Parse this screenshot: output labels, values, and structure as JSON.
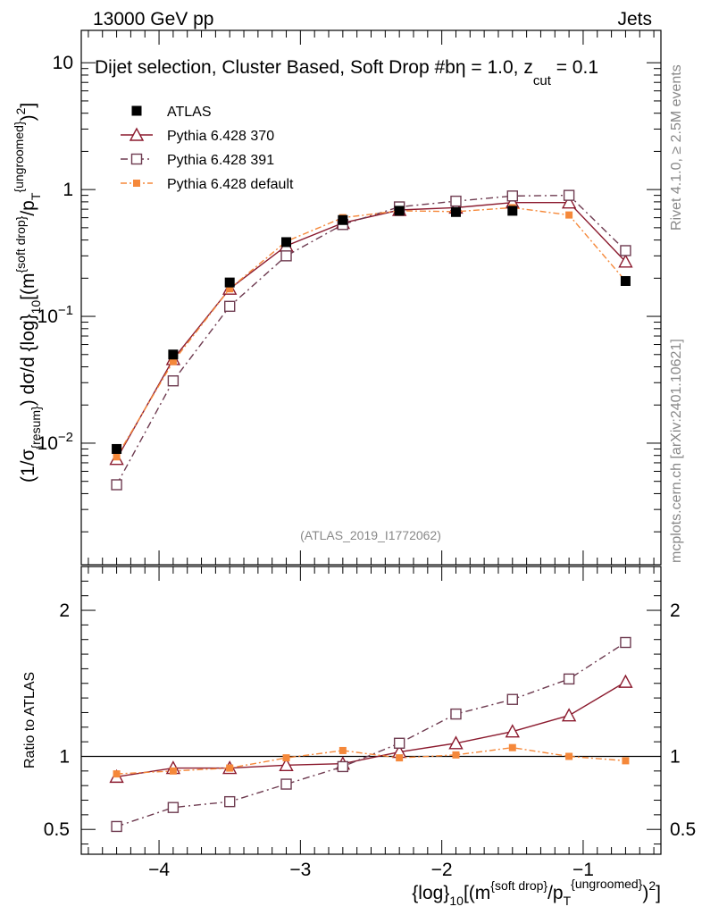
{
  "header": {
    "left": "13000 GeV pp",
    "right": "Jets"
  },
  "side_labels": {
    "rivet": "Rivet 4.1.0, ≥ 2.5M events",
    "mcplots": "mcplots.cern.ch [arXiv:2401.10621]"
  },
  "colors": {
    "atlas": "#000000",
    "py370": "#8b1a2e",
    "py391": "#6e3b50",
    "pydef": "#f5883a"
  },
  "chart_data": [
    {
      "type": "line",
      "panel": "main",
      "title": "Dijet selection, Cluster Based, Soft Drop #b",
      "title_extra": "η = 1.0, z",
      "title_sub": "cut",
      "title_tail": " = 0.1",
      "watermark": "(ATLAS_2019_I1772062)",
      "ylabel": "(1/σ_{resum}) dσ/d {log}_10[(m^{soft drop}/p_T^{ungroomed})^2]",
      "yscale": "log",
      "ylim": [
        0.0011,
        18
      ],
      "xlim": [
        -4.55,
        -0.45
      ],
      "yticks": [
        {
          "value": 0.01,
          "label": "10",
          "exp": "−2"
        },
        {
          "value": 0.1,
          "label": "10",
          "exp": "−1"
        },
        {
          "value": 1,
          "label": "1",
          "exp": ""
        },
        {
          "value": 10,
          "label": "10",
          "exp": ""
        }
      ],
      "x": [
        -4.3,
        -3.9,
        -3.5,
        -3.1,
        -2.7,
        -2.3,
        -1.9,
        -1.5,
        -1.1,
        -0.7
      ],
      "legend": [
        "ATLAS",
        "Pythia 6.428 370",
        "Pythia 6.428 391",
        "Pythia 6.428 default"
      ],
      "legend_position": "top-left",
      "series": [
        {
          "name": "ATLAS",
          "values": [
            0.009,
            0.05,
            0.185,
            0.385,
            0.575,
            0.68,
            0.665,
            0.68,
            null,
            0.19
          ]
        },
        {
          "name": "Pythia 6.428 370",
          "values": [
            0.0075,
            0.046,
            0.165,
            0.36,
            0.545,
            0.69,
            0.72,
            0.79,
            0.79,
            0.27
          ]
        },
        {
          "name": "Pythia 6.428 391",
          "values": [
            0.0047,
            0.031,
            0.12,
            0.3,
            0.53,
            0.73,
            0.81,
            0.89,
            0.9,
            0.33
          ]
        },
        {
          "name": "Pythia 6.428 default",
          "values": [
            0.0078,
            0.044,
            0.165,
            0.39,
            0.6,
            0.68,
            0.67,
            0.72,
            0.63,
            0.19
          ]
        }
      ]
    },
    {
      "type": "line",
      "panel": "ratio",
      "ylabel": "Ratio to ATLAS",
      "ylim": [
        0.33,
        2.3
      ],
      "xlim": [
        -4.55,
        -0.45
      ],
      "yticks": [
        0.5,
        1,
        2
      ],
      "ytick_labels": [
        "0.5",
        "1",
        "2"
      ],
      "xticks": [
        -4,
        -3,
        -2,
        -1
      ],
      "xtick_labels": [
        "−4",
        "−3",
        "−2",
        "−1"
      ],
      "xlabel": "{log}_10[(m^{soft drop}/p_T^{ungroomed})^2]",
      "x": [
        -4.3,
        -3.9,
        -3.5,
        -3.1,
        -2.7,
        -2.3,
        -1.9,
        -1.5,
        -1.1,
        -0.7
      ],
      "series": [
        {
          "name": "Pythia 6.428 370",
          "values": [
            0.86,
            0.92,
            0.92,
            0.94,
            0.95,
            1.03,
            1.09,
            1.17,
            1.28,
            1.51
          ]
        },
        {
          "name": "Pythia 6.428 391",
          "values": [
            0.52,
            0.65,
            0.69,
            0.81,
            0.93,
            1.09,
            1.29,
            1.39,
            1.53,
            1.78
          ]
        },
        {
          "name": "Pythia 6.428 default",
          "values": [
            0.88,
            0.9,
            0.92,
            0.99,
            1.04,
            0.99,
            1.01,
            1.06,
            1.0,
            0.97
          ]
        }
      ]
    }
  ]
}
